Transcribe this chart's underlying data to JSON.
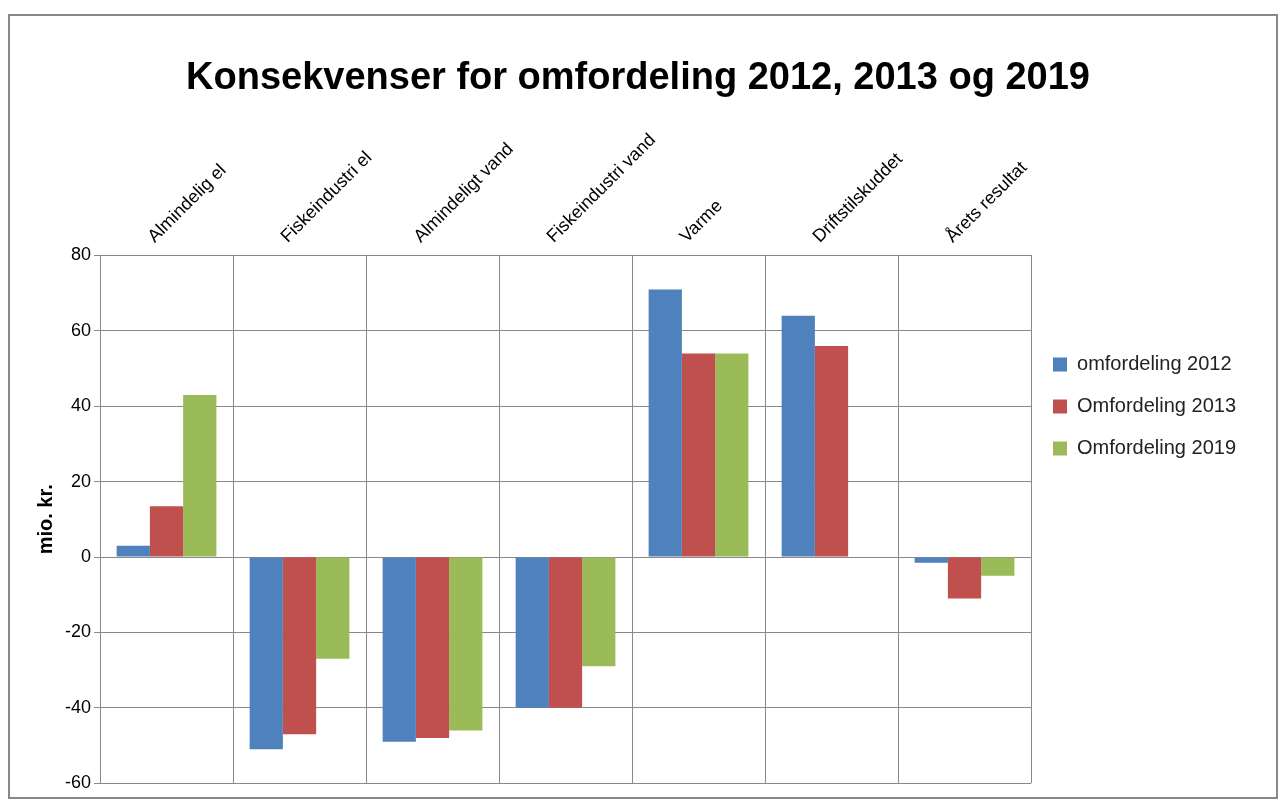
{
  "chart_data": {
    "type": "bar",
    "title": "Konsekvenser for omfordeling 2012, 2013 og 2019",
    "ylabel": "mio. kr.",
    "categories": [
      "Almindelig el",
      "Fiskeindustri el",
      "Almindeligt vand",
      "Fiskeindustri vand",
      "Varme",
      "Driftstilskuddet",
      "Årets resultat"
    ],
    "series": [
      {
        "name": "omfordeling 2012",
        "color": "#4f81bd",
        "values": [
          3,
          -51,
          -49,
          -40,
          71,
          64,
          -1.5
        ]
      },
      {
        "name": "Omfordeling 2013",
        "color": "#c0504d",
        "values": [
          13.5,
          -47,
          -48,
          -40,
          54,
          56,
          -11
        ]
      },
      {
        "name": "Omfordeling 2019",
        "color": "#9bbb59",
        "values": [
          43,
          -27,
          -46,
          -29,
          54,
          null,
          -5
        ]
      }
    ],
    "ylim": [
      -60,
      80
    ],
    "yticks": [
      -60,
      -40,
      -20,
      0,
      20,
      40,
      60,
      80
    ],
    "grid": true,
    "legend": "right"
  }
}
